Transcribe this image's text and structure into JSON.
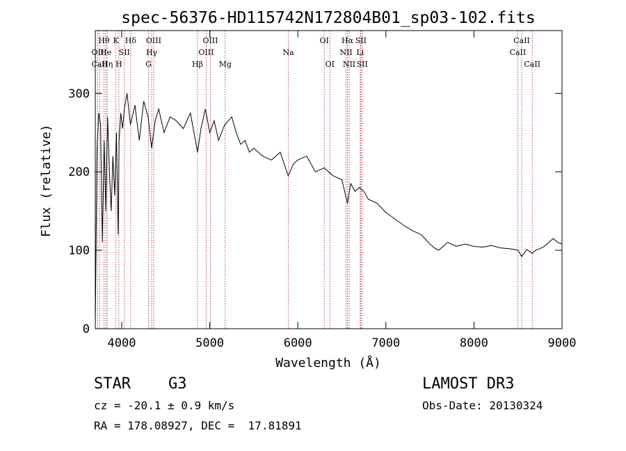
{
  "chart_data": {
    "type": "line",
    "title": "spec-56376-HD115742N172804B01_sp03-102.fits",
    "xlabel": "Wavelength (Å)",
    "ylabel": "Flux (relative)",
    "xlim": [
      3700,
      9000
    ],
    "ylim": [
      0,
      380
    ],
    "xticks": [
      4000,
      5000,
      6000,
      7000,
      8000,
      9000
    ],
    "yticks": [
      0,
      100,
      200,
      300
    ],
    "grid": false,
    "series": [
      {
        "name": "flux",
        "x": [
          3700,
          3720,
          3740,
          3760,
          3780,
          3800,
          3820,
          3840,
          3860,
          3880,
          3900,
          3920,
          3940,
          3960,
          3970,
          3990,
          4010,
          4030,
          4060,
          4100,
          4150,
          4200,
          4250,
          4300,
          4340,
          4380,
          4420,
          4480,
          4550,
          4620,
          4700,
          4780,
          4861,
          4900,
          4950,
          5000,
          5050,
          5100,
          5170,
          5250,
          5300,
          5350,
          5400,
          5450,
          5500,
          5600,
          5700,
          5800,
          5890,
          5950,
          6000,
          6100,
          6200,
          6300,
          6400,
          6500,
          6563,
          6600,
          6650,
          6700,
          6750,
          6800,
          6900,
          7000,
          7100,
          7200,
          7300,
          7400,
          7500,
          7550,
          7600,
          7650,
          7700,
          7800,
          7900,
          8000,
          8100,
          8200,
          8300,
          8400,
          8500,
          8542,
          8600,
          8662,
          8700,
          8750,
          8800,
          8850,
          8900,
          8950,
          9000
        ],
        "y": [
          5,
          230,
          275,
          260,
          110,
          240,
          150,
          270,
          200,
          150,
          220,
          170,
          250,
          120,
          240,
          275,
          255,
          280,
          300,
          260,
          285,
          240,
          290,
          270,
          230,
          265,
          280,
          250,
          270,
          265,
          255,
          275,
          225,
          255,
          280,
          250,
          265,
          240,
          260,
          270,
          250,
          235,
          240,
          225,
          230,
          220,
          215,
          225,
          195,
          210,
          215,
          220,
          200,
          205,
          195,
          190,
          160,
          185,
          175,
          180,
          175,
          165,
          160,
          148,
          140,
          132,
          125,
          120,
          108,
          103,
          100,
          105,
          110,
          105,
          108,
          105,
          104,
          106,
          103,
          102,
          100,
          92,
          101,
          96,
          100,
          102,
          105,
          110,
          115,
          110,
          108
        ]
      }
    ],
    "annotations": [
      {
        "label": "Hθ",
        "x": 3798,
        "row": 1
      },
      {
        "label": "OII",
        "x": 3727,
        "row": 2
      },
      {
        "label": "CaII",
        "x": 3750,
        "row": 3
      },
      {
        "label": "He",
        "x": 3820,
        "row": 2
      },
      {
        "label": "Hη",
        "x": 3835,
        "row": 3
      },
      {
        "label": "K",
        "x": 3934,
        "row": 1
      },
      {
        "label": "SII",
        "x": 4030,
        "row": 2
      },
      {
        "label": "H",
        "x": 3968,
        "row": 3
      },
      {
        "label": "Hδ",
        "x": 4102,
        "row": 1
      },
      {
        "label": "OIII",
        "x": 4363,
        "row": 1
      },
      {
        "label": "Hγ",
        "x": 4340,
        "row": 2
      },
      {
        "label": "G",
        "x": 4304,
        "row": 3
      },
      {
        "label": "Hβ",
        "x": 4861,
        "row": 3
      },
      {
        "label": "OIII",
        "x": 5007,
        "row": 1
      },
      {
        "label": "OIII",
        "x": 4959,
        "row": 2
      },
      {
        "label": "Mg",
        "x": 5175,
        "row": 3
      },
      {
        "label": "Na",
        "x": 5893,
        "row": 2
      },
      {
        "label": "OI",
        "x": 6300,
        "row": 1
      },
      {
        "label": "OI",
        "x": 6364,
        "row": 3
      },
      {
        "label": "Hα",
        "x": 6563,
        "row": 1
      },
      {
        "label": "SII",
        "x": 6716,
        "row": 1
      },
      {
        "label": "NII",
        "x": 6548,
        "row": 2
      },
      {
        "label": "Li",
        "x": 6708,
        "row": 2
      },
      {
        "label": "NII",
        "x": 6583,
        "row": 3
      },
      {
        "label": "SII",
        "x": 6731,
        "row": 3
      },
      {
        "label": "CaII",
        "x": 8542,
        "row": 1
      },
      {
        "label": "CaII",
        "x": 8498,
        "row": 2
      },
      {
        "label": "CaII",
        "x": 8662,
        "row": 3
      }
    ]
  },
  "info": {
    "object_class": "STAR",
    "subclass": "G3",
    "survey": "LAMOST DR3",
    "cz": "cz = -20.1 ± 0.9 km/s",
    "obs_date": "Obs-Date: 20130324",
    "coords": "RA = 178.08927, DEC =  17.81891"
  }
}
